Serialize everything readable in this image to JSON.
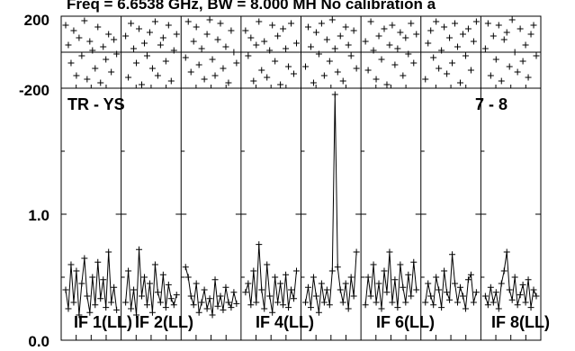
{
  "chart_data": {
    "type": "line",
    "title": "Freq = 6.6538 GHz, BW = 8.000 MH   No calibration a",
    "baseline_label": "TR - YS",
    "channel_range_label": "7 - 8",
    "phase_panel": {
      "ylim": [
        -200,
        200
      ],
      "y_tick_labels": [
        "200",
        "-200"
      ],
      "values_by_panel": [
        [
          150,
          40,
          -60,
          120,
          -130,
          80,
          -20,
          175,
          -150,
          60,
          10,
          -90,
          140,
          -170,
          30,
          -40,
          100,
          -110,
          70,
          -10
        ],
        [
          90,
          -140,
          160,
          20,
          -60,
          130,
          -180,
          50,
          -20,
          110,
          -90,
          170,
          -130,
          40,
          80,
          -50,
          150,
          -160,
          10,
          100
        ],
        [
          -30,
          170,
          -110,
          60,
          140,
          -70,
          20,
          -150,
          100,
          180,
          -40,
          -130,
          70,
          160,
          -90,
          30,
          -170,
          120,
          0,
          -60
        ],
        [
          120,
          -20,
          80,
          -160,
          40,
          170,
          -100,
          60,
          -140,
          10,
          150,
          -50,
          90,
          -180,
          130,
          20,
          -80,
          160,
          -120,
          50
        ],
        [
          -80,
          140,
          30,
          -170,
          110,
          -10,
          160,
          -130,
          70,
          -50,
          180,
          20,
          -110,
          90,
          -160,
          140,
          40,
          -20,
          120,
          -90
        ],
        [
          60,
          -100,
          170,
          10,
          -150,
          90,
          -40,
          130,
          -180,
          40,
          150,
          -70,
          20,
          110,
          -130,
          80,
          -10,
          160,
          -60,
          100
        ],
        [
          -150,
          50,
          120,
          -30,
          170,
          -90,
          10,
          140,
          -120,
          80,
          -60,
          160,
          30,
          -170,
          100,
          -20,
          130,
          -100,
          60,
          170
        ],
        [
          20,
          160,
          -130,
          90,
          -40,
          150,
          -160,
          70,
          110,
          -80,
          180,
          0,
          -110,
          130,
          -50,
          40,
          -140,
          100,
          150,
          -20
        ]
      ]
    },
    "amplitude_panel": {
      "ylim": [
        0.0,
        2.0
      ],
      "y_tick_labels": [
        "1.0",
        "0.0"
      ],
      "series": [
        {
          "name": "IF 1(LL)",
          "values": [
            0.4,
            0.25,
            0.6,
            0.3,
            0.55,
            0.2,
            0.45,
            0.65,
            0.35,
            0.22,
            0.5,
            0.28,
            0.62,
            0.33,
            0.48,
            0.26,
            0.7,
            0.3,
            0.42,
            0.24
          ]
        },
        {
          "name": "IF 2(LL)",
          "values": [
            0.3,
            0.55,
            0.25,
            0.4,
            0.2,
            0.72,
            0.35,
            0.5,
            0.28,
            0.45,
            0.22,
            0.6,
            0.38,
            0.3,
            0.52,
            0.26,
            0.44,
            0.33,
            0.28,
            0.36
          ]
        },
        {
          "name": "",
          "values": [
            0.58,
            0.5,
            0.35,
            0.28,
            0.45,
            0.22,
            0.3,
            0.4,
            0.25,
            0.33,
            0.2,
            0.48,
            0.27,
            0.35,
            0.24,
            0.42,
            0.3,
            0.26,
            0.38,
            0.29
          ]
        },
        {
          "name": "IF 4(LL)",
          "values": [
            0.38,
            0.45,
            0.28,
            0.55,
            0.3,
            0.76,
            0.4,
            0.25,
            0.6,
            0.35,
            0.22,
            0.5,
            0.3,
            0.45,
            0.28,
            0.52,
            0.26,
            0.4,
            0.33,
            0.55
          ]
        },
        {
          "name": "",
          "values": [
            0.3,
            0.42,
            0.26,
            0.5,
            0.35,
            0.22,
            0.45,
            0.3,
            0.4,
            0.28,
            0.55,
            1.95,
            0.58,
            0.4,
            0.3,
            0.45,
            0.25,
            0.5,
            0.35,
            0.7
          ]
        },
        {
          "name": "IF 6(LL)",
          "values": [
            0.28,
            0.5,
            0.35,
            0.6,
            0.3,
            0.45,
            0.25,
            0.55,
            0.38,
            0.7,
            0.3,
            0.48,
            0.26,
            0.6,
            0.42,
            0.3,
            0.52,
            0.35,
            0.62,
            0.4
          ]
        },
        {
          "name": "",
          "values": [
            0.3,
            0.45,
            0.35,
            0.28,
            0.5,
            0.4,
            0.26,
            0.55,
            0.38,
            0.32,
            0.68,
            0.45,
            0.3,
            0.42,
            0.35,
            0.25,
            0.48,
            0.52,
            0.3,
            0.38
          ]
        },
        {
          "name": "IF 8(LL)",
          "values": [
            0.35,
            0.28,
            0.42,
            0.3,
            0.38,
            0.25,
            0.45,
            0.55,
            0.7,
            0.4,
            0.32,
            0.5,
            0.28,
            0.36,
            0.44,
            0.3,
            0.48,
            0.26,
            0.4,
            0.35
          ]
        }
      ]
    },
    "grid": false
  }
}
